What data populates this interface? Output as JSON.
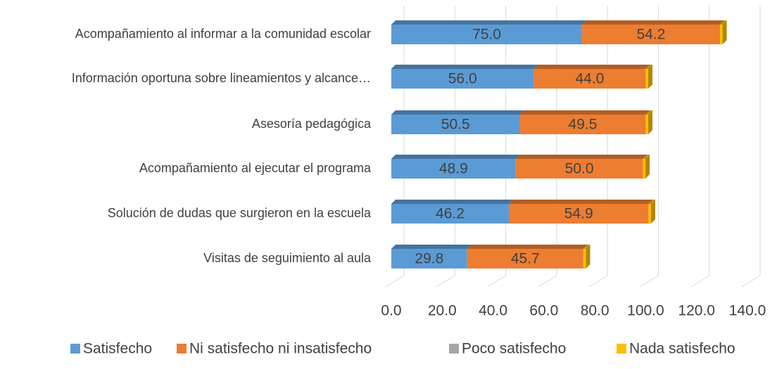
{
  "chart_data": {
    "type": "bar",
    "orientation": "horizontal",
    "stacked": true,
    "categories": [
      "Acompañamiento al informar a la comunidad escolar",
      "Información oportuna sobre lineamientos y alcance…",
      "Asesoría pedagógica",
      "Acompañamiento al ejecutar el programa",
      "Solución de dudas que surgieron en la escuela",
      "Visitas de seguimiento al aula"
    ],
    "series": [
      {
        "name": "Satisfecho",
        "color": "#5b9bd5",
        "values": [
          75.0,
          56.0,
          50.5,
          48.9,
          46.2,
          29.8
        ],
        "value_labels": [
          "75.0",
          "56.0",
          "50.5",
          "48.9",
          "46.2",
          "29.8"
        ]
      },
      {
        "name": "Ni satisfecho ni insatisfecho",
        "color": "#ed7d31",
        "values": [
          54.2,
          44.0,
          49.5,
          50.0,
          54.9,
          45.7
        ],
        "value_labels": [
          "54.2",
          "44.0",
          "49.5",
          "50.0",
          "54.9",
          "45.7"
        ]
      },
      {
        "name": "Poco satisfecho",
        "color": "#a5a5a5",
        "values": [
          0,
          0,
          0,
          0,
          0,
          0
        ]
      },
      {
        "name": "Nada satisfecho",
        "color": "#ffc000",
        "values": [
          1,
          1,
          1,
          1,
          1,
          1
        ]
      }
    ],
    "xlim": [
      0,
      140
    ],
    "xticks": [
      {
        "value": 0,
        "label": "0.0"
      },
      {
        "value": 20,
        "label": "20.0"
      },
      {
        "value": 40,
        "label": "40.0"
      },
      {
        "value": 60,
        "label": "60.0"
      },
      {
        "value": 80,
        "label": "80.0"
      },
      {
        "value": 100,
        "label": "100.0"
      },
      {
        "value": 120,
        "label": "120.0"
      },
      {
        "value": 140,
        "label": "140.0"
      }
    ],
    "grid": true,
    "legend": "bottom"
  }
}
